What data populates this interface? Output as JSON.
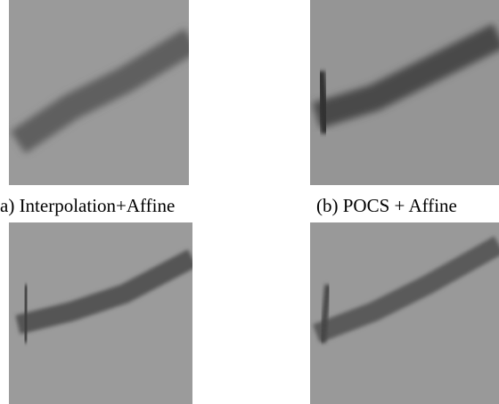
{
  "figure": {
    "captions": [
      "a) Interpolation+Affine",
      "(b) POCS + Affine"
    ]
  }
}
